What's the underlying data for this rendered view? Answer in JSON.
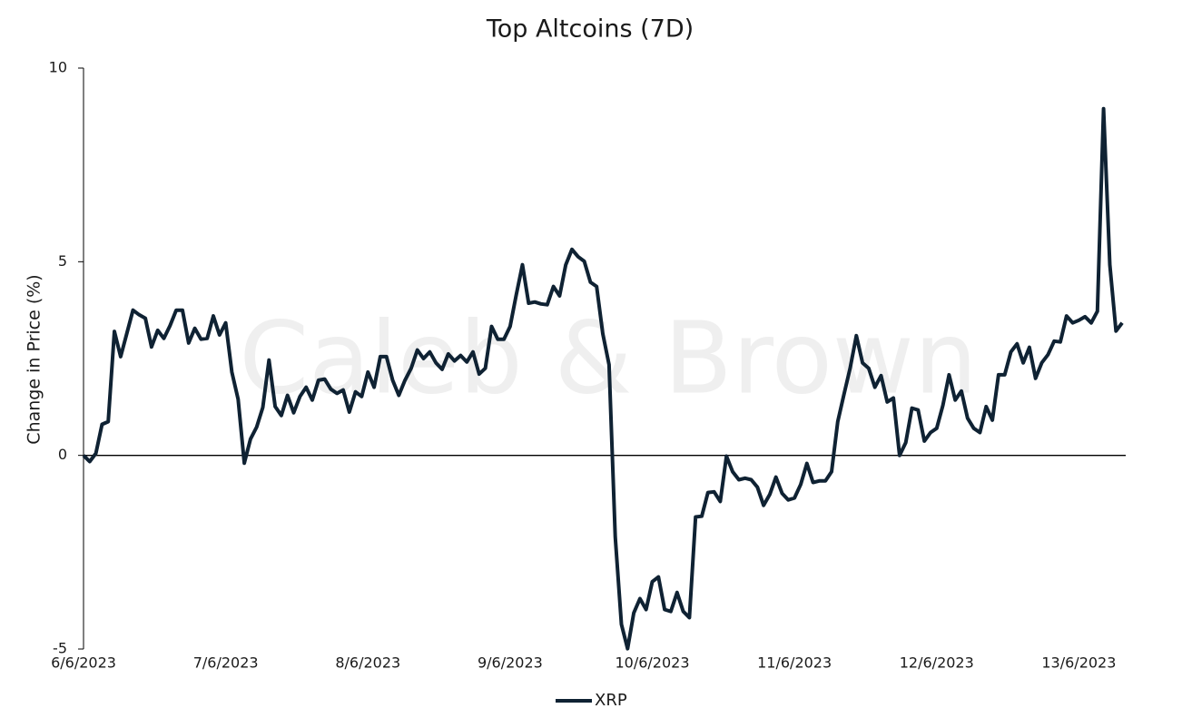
{
  "chart_data": {
    "type": "line",
    "title": "Top Altcoins (7D)",
    "y_label": "Change in Price (%)",
    "watermark": "Caleb & Brown",
    "categories": [
      "6/6/2023",
      null,
      null,
      null,
      null,
      null,
      null,
      null,
      null,
      null,
      null,
      null,
      null,
      null,
      null,
      null,
      null,
      null,
      null,
      null,
      null,
      null,
      null,
      "7/6/2023",
      null,
      null,
      null,
      null,
      null,
      null,
      null,
      null,
      null,
      null,
      null,
      null,
      null,
      null,
      null,
      null,
      null,
      null,
      null,
      null,
      null,
      null,
      "8/6/2023",
      null,
      null,
      null,
      null,
      null,
      null,
      null,
      null,
      null,
      null,
      null,
      null,
      null,
      null,
      null,
      null,
      null,
      null,
      null,
      null,
      null,
      null,
      "9/6/2023",
      null,
      null,
      null,
      null,
      null,
      null,
      null,
      null,
      null,
      null,
      null,
      null,
      null,
      null,
      null,
      null,
      null,
      null,
      null,
      null,
      null,
      null,
      "10/6/2023",
      null,
      null,
      null,
      null,
      null,
      null,
      null,
      null,
      null,
      null,
      null,
      null,
      null,
      null,
      null,
      null,
      null,
      null,
      null,
      null,
      null,
      null,
      "11/6/2023",
      null,
      null,
      null,
      null,
      null,
      null,
      null,
      null,
      null,
      null,
      null,
      null,
      null,
      null,
      null,
      null,
      null,
      null,
      null,
      null,
      null,
      null,
      "12/6/2023",
      null,
      null,
      null,
      null,
      null,
      null,
      null,
      null,
      null,
      null,
      null,
      null,
      null,
      null,
      null,
      null,
      null,
      null,
      null,
      null,
      null,
      null,
      "13/6/2023",
      null,
      null,
      null,
      null,
      null,
      null,
      null
    ],
    "series": [
      {
        "name": "XRP",
        "color": "#0f2233",
        "values": [
          0,
          -0.16,
          0.05,
          0.8,
          0.87,
          3.2,
          2.55,
          3.15,
          3.75,
          3.63,
          3.54,
          2.8,
          3.23,
          3.02,
          3.35,
          3.75,
          3.75,
          2.9,
          3.28,
          3.0,
          3.02,
          3.6,
          3.11,
          3.42,
          2.15,
          1.45,
          -0.2,
          0.42,
          0.73,
          1.24,
          2.46,
          1.26,
          1.03,
          1.55,
          1.1,
          1.52,
          1.76,
          1.43,
          1.94,
          1.97,
          1.71,
          1.6,
          1.69,
          1.12,
          1.64,
          1.52,
          2.15,
          1.76,
          2.55,
          2.55,
          1.94,
          1.55,
          1.94,
          2.25,
          2.72,
          2.5,
          2.67,
          2.39,
          2.22,
          2.62,
          2.44,
          2.58,
          2.41,
          2.67,
          2.1,
          2.25,
          3.33,
          3.0,
          3.0,
          3.33,
          4.15,
          4.92,
          3.93,
          3.96,
          3.91,
          3.89,
          4.36,
          4.12,
          4.92,
          5.32,
          5.13,
          5.01,
          4.47,
          4.36,
          3.14,
          2.34,
          -2.1,
          -4.36,
          -4.99,
          -4.07,
          -3.7,
          -3.98,
          -3.26,
          -3.14,
          -3.98,
          -4.03,
          -3.54,
          -4.03,
          -4.19,
          -1.59,
          -1.57,
          -0.96,
          -0.94,
          -1.19,
          -0.02,
          -0.42,
          -0.63,
          -0.59,
          -0.63,
          -0.82,
          -1.29,
          -1.01,
          -0.56,
          -0.98,
          -1.15,
          -1.1,
          -0.75,
          -0.21,
          -0.7,
          -0.66,
          -0.66,
          -0.42,
          0.87,
          1.57,
          2.25,
          3.09,
          2.39,
          2.25,
          1.76,
          2.06,
          1.38,
          1.48,
          0,
          0.33,
          1.22,
          1.17,
          0.37,
          0.59,
          0.7,
          1.29,
          2.08,
          1.43,
          1.66,
          0.96,
          0.7,
          0.59,
          1.26,
          0.91,
          2.08,
          2.08,
          2.67,
          2.88,
          2.39,
          2.79,
          1.99,
          2.39,
          2.6,
          2.95,
          2.93,
          3.6,
          3.42,
          3.49,
          3.58,
          3.42,
          3.72,
          8.95,
          4.92,
          3.21,
          3.42
        ]
      }
    ],
    "ylim": [
      -5,
      10
    ],
    "yticks": [
      -5,
      0,
      5,
      10
    ],
    "grid": false,
    "legend": "bottom"
  }
}
